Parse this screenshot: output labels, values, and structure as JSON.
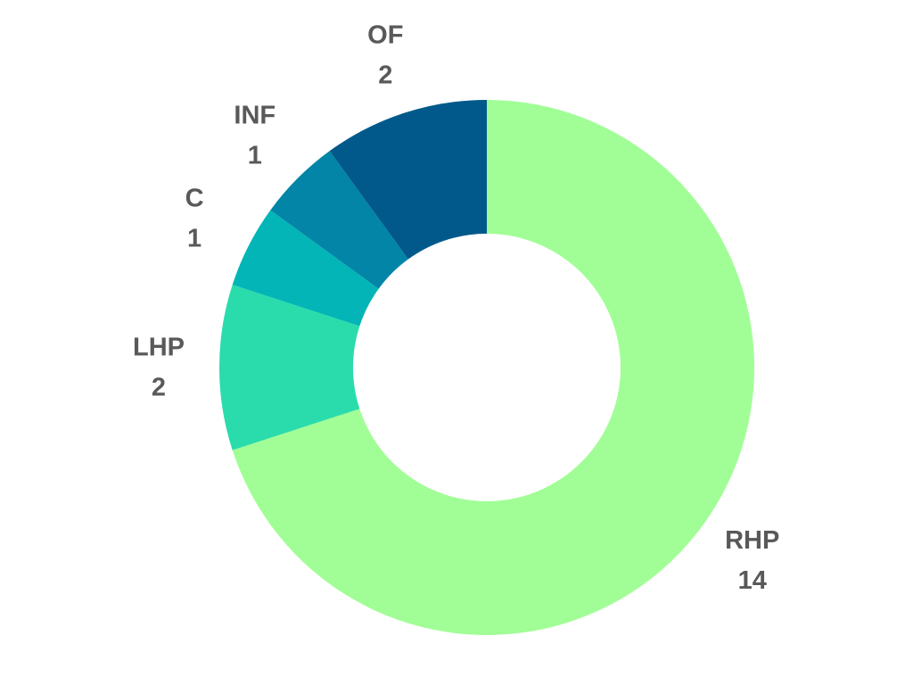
{
  "chart_data": {
    "type": "pie",
    "variant": "donut",
    "title": "",
    "slices": [
      {
        "label": "RHP",
        "value": 14,
        "color": "#a1fe96"
      },
      {
        "label": "LHP",
        "value": 2,
        "color": "#2adcab"
      },
      {
        "label": "C",
        "value": 1,
        "color": "#03b5b6"
      },
      {
        "label": "INF",
        "value": 1,
        "color": "#0285a7"
      },
      {
        "label": "OF",
        "value": 2,
        "color": "#00598a"
      }
    ],
    "start_angle": "12 o'clock",
    "direction": "clockwise",
    "labels_outside": true
  }
}
